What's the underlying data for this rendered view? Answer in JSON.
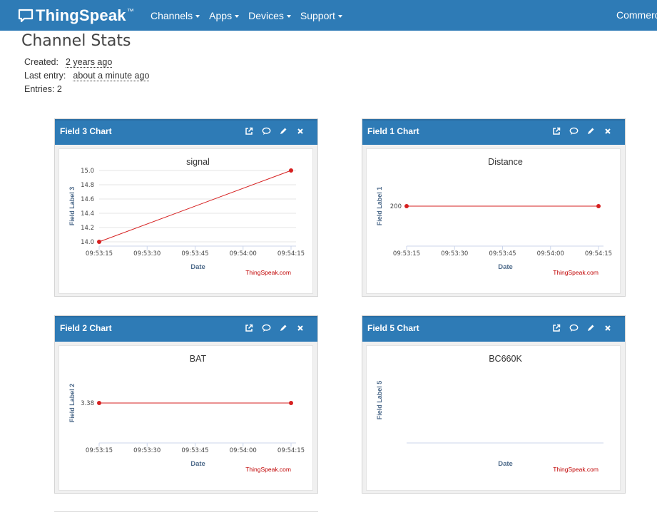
{
  "nav": {
    "logo_text": "ThingSpeak",
    "logo_tm": "™",
    "items": [
      "Channels",
      "Apps",
      "Devices",
      "Support"
    ],
    "right_item": "Commercia"
  },
  "stats": {
    "title": "Channel Stats",
    "created_label": "Created:",
    "created_value": "2 years ago",
    "last_entry_label": "Last entry:",
    "last_entry_value": "about a minute ago",
    "entries_label": "Entries: 2"
  },
  "colors": {
    "header_blue": "#2e7bb6",
    "series_red": "#d62020",
    "axis_title_blue": "#4d6a8a",
    "watermark_red": "#c00000"
  },
  "icons": [
    "external-link-icon",
    "comment-icon",
    "pencil-icon",
    "close-icon"
  ],
  "panels": [
    {
      "header": "Field 3 Chart",
      "chart_data": {
        "type": "line",
        "title": "signal",
        "xlabel": "Date",
        "ylabel": "Field Label 3",
        "x_ticks": [
          "09:53:15",
          "09:53:30",
          "09:53:45",
          "09:54:00",
          "09:54:15"
        ],
        "x": [
          "09:53:15",
          "09:54:15"
        ],
        "values": [
          14.0,
          15.0
        ],
        "y_ticks": [
          "14.0",
          "14.2",
          "14.4",
          "14.6",
          "14.8",
          "15.0"
        ],
        "ylim": [
          14.0,
          15.0
        ],
        "credit": "ThingSpeak.com"
      }
    },
    {
      "header": "Field 1 Chart",
      "chart_data": {
        "type": "line",
        "title": "Distance",
        "xlabel": "Date",
        "ylabel": "Field Label 1",
        "x_ticks": [
          "09:53:15",
          "09:53:30",
          "09:53:45",
          "09:54:00",
          "09:54:15"
        ],
        "x": [
          "09:53:15",
          "09:54:15"
        ],
        "values": [
          200,
          200
        ],
        "y_ticks": [
          "200"
        ],
        "credit": "ThingSpeak.com"
      }
    },
    {
      "header": "Field 2 Chart",
      "chart_data": {
        "type": "line",
        "title": "BAT",
        "xlabel": "Date",
        "ylabel": "Field Label 2",
        "x_ticks": [
          "09:53:15",
          "09:53:30",
          "09:53:45",
          "09:54:00",
          "09:54:15"
        ],
        "x": [
          "09:53:15",
          "09:54:15"
        ],
        "values": [
          3.38,
          3.38
        ],
        "y_ticks": [
          "3.38"
        ],
        "credit": "ThingSpeak.com"
      }
    },
    {
      "header": "Field 5 Chart",
      "chart_data": {
        "type": "line",
        "title": "BC660K",
        "xlabel": "Date",
        "ylabel": "Field Label 5",
        "x_ticks": [],
        "x": [],
        "values": [],
        "y_ticks": [],
        "credit": "ThingSpeak.com"
      }
    }
  ]
}
